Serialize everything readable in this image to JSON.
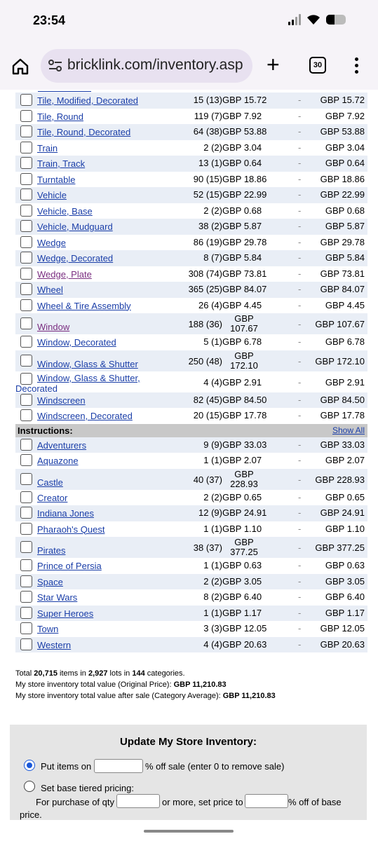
{
  "status": {
    "time": "23:54"
  },
  "browser": {
    "url": "bricklink.com/inventory.asp",
    "tab_count": "30"
  },
  "rows_a": [
    {
      "name": "Tile, Modified, Decorated",
      "qty": "15 (13)",
      "price": "GBP 15.72",
      "total": "GBP 15.72"
    },
    {
      "name": "Tile, Round",
      "qty": "119 (7)",
      "price": "GBP 7.92",
      "total": "GBP 7.92"
    },
    {
      "name": "Tile, Round, Decorated",
      "qty": "64 (38)",
      "price": "GBP 53.88",
      "total": "GBP 53.88"
    },
    {
      "name": "Train",
      "qty": "2 (2)",
      "price": "GBP 3.04",
      "total": "GBP 3.04"
    },
    {
      "name": "Train, Track",
      "qty": "13 (1)",
      "price": "GBP 0.64",
      "total": "GBP 0.64"
    },
    {
      "name": "Turntable",
      "qty": "90 (15)",
      "price": "GBP 18.86",
      "total": "GBP 18.86"
    },
    {
      "name": "Vehicle",
      "qty": "52 (15)",
      "price": "GBP 22.99",
      "total": "GBP 22.99"
    },
    {
      "name": "Vehicle, Base",
      "qty": "2 (2)",
      "price": "GBP 0.68",
      "total": "GBP 0.68"
    },
    {
      "name": "Vehicle, Mudguard",
      "qty": "38 (2)",
      "price": "GBP 5.87",
      "total": "GBP 5.87"
    },
    {
      "name": "Wedge",
      "qty": "86 (19)",
      "price": "GBP 29.78",
      "total": "GBP 29.78"
    },
    {
      "name": "Wedge, Decorated",
      "qty": "8 (7)",
      "price": "GBP 5.84",
      "total": "GBP 5.84"
    },
    {
      "name": "Wedge, Plate",
      "qty": "308 (74)",
      "price": "GBP 73.81",
      "total": "GBP 73.81"
    },
    {
      "name": "Wheel",
      "qty": "365 (25)",
      "price": "GBP 84.07",
      "total": "GBP 84.07"
    },
    {
      "name": "Wheel & Tire Assembly",
      "qty": "26 (4)",
      "price": "GBP 4.45",
      "total": "GBP 4.45"
    }
  ],
  "row_window": {
    "name": "Window",
    "qty": "188 (36)",
    "price_cur": "GBP",
    "price_val": "107.67",
    "total": "GBP 107.67"
  },
  "row_window_dec": {
    "name": "Window, Decorated",
    "qty": "5 (1)",
    "price": "GBP 6.78",
    "total": "GBP 6.78"
  },
  "row_wgs": {
    "name": "Window, Glass & Shutter",
    "qty": "250 (48)",
    "price_cur": "GBP",
    "price_val": "172.10",
    "total": "GBP 172.10"
  },
  "row_wgsd": {
    "name_line1": "Window, Glass & Shutter,",
    "name_line2": "Decorated",
    "qty": "4 (4)",
    "price": "GBP 2.91",
    "total": "GBP 2.91"
  },
  "rows_b": [
    {
      "name": "Windscreen",
      "qty": "82 (45)",
      "price": "GBP 84.50",
      "total": "GBP 84.50"
    },
    {
      "name": "Windscreen, Decorated",
      "qty": "20 (15)",
      "price": "GBP 17.78",
      "total": "GBP 17.78"
    }
  ],
  "instructions_header": {
    "label": "Instructions:",
    "show_all": "Show All"
  },
  "rows_c": [
    {
      "name": "Adventurers",
      "qty": "9 (9)",
      "price": "GBP 33.03",
      "total": "GBP 33.03"
    },
    {
      "name": "Aquazone",
      "qty": "1 (1)",
      "price": "GBP 2.07",
      "total": "GBP 2.07"
    }
  ],
  "row_castle": {
    "name": "Castle",
    "qty": "40 (37)",
    "price_cur": "GBP",
    "price_val": "228.93",
    "total": "GBP 228.93"
  },
  "rows_d": [
    {
      "name": "Creator",
      "qty": "2 (2)",
      "price": "GBP 0.65",
      "total": "GBP 0.65"
    },
    {
      "name": "Indiana Jones",
      "qty": "12 (9)",
      "price": "GBP 24.91",
      "total": "GBP 24.91"
    },
    {
      "name": "Pharaoh's Quest",
      "qty": "1 (1)",
      "price": "GBP 1.10",
      "total": "GBP 1.10"
    }
  ],
  "row_pirates": {
    "name": "Pirates",
    "qty": "38 (37)",
    "price_cur": "GBP",
    "price_val": "377.25",
    "total": "GBP 377.25"
  },
  "rows_e": [
    {
      "name": "Prince of Persia",
      "qty": "1 (1)",
      "price": "GBP 0.63",
      "total": "GBP 0.63"
    },
    {
      "name": "Space",
      "qty": "2 (2)",
      "price": "GBP 3.05",
      "total": "GBP 3.05"
    },
    {
      "name": "Star Wars",
      "qty": "8 (2)",
      "price": "GBP 6.40",
      "total": "GBP 6.40"
    },
    {
      "name": "Super Heroes",
      "qty": "1 (1)",
      "price": "GBP 1.17",
      "total": "GBP 1.17"
    },
    {
      "name": "Town",
      "qty": "3 (3)",
      "price": "GBP 12.05",
      "total": "GBP 12.05"
    },
    {
      "name": "Western",
      "qty": "4 (4)",
      "price": "GBP 20.63",
      "total": "GBP 20.63"
    }
  ],
  "dash": "-",
  "summary": {
    "l1_a": "Total ",
    "l1_items": "20,715",
    "l1_b": " items in ",
    "l1_lots": "2,927",
    "l1_c": " lots in ",
    "l1_cats": "144",
    "l1_d": " categories.",
    "l2_a": "My store inventory total value (Original Price): ",
    "l2_val": "GBP 11,210.83",
    "l3_a": "My store inventory total value after sale (Category Average): ",
    "l3_val": "GBP 11,210.83"
  },
  "update": {
    "title": "Update My Store Inventory:",
    "opt1_a": "Put items on",
    "opt1_b": "% off sale (enter 0 to remove sale)",
    "opt2": "Set base tiered pricing:",
    "opt2_a": "For purchase of qty",
    "opt2_b": "or more, set price to",
    "opt2_c": "% off of base",
    "opt2_d": "price."
  }
}
